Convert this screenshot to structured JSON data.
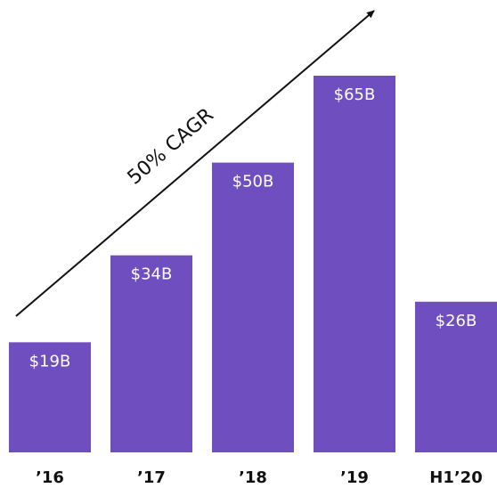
{
  "chart_data": {
    "type": "bar",
    "categories": [
      "’16",
      "’17",
      "’18",
      "’19",
      "H1’20"
    ],
    "values": [
      19,
      34,
      50,
      65,
      26
    ],
    "value_labels": [
      "$19B",
      "$34B",
      "$50B",
      "$65B",
      "$26B"
    ],
    "color": "#6f4fbf",
    "annotation": "50% CAGR"
  }
}
